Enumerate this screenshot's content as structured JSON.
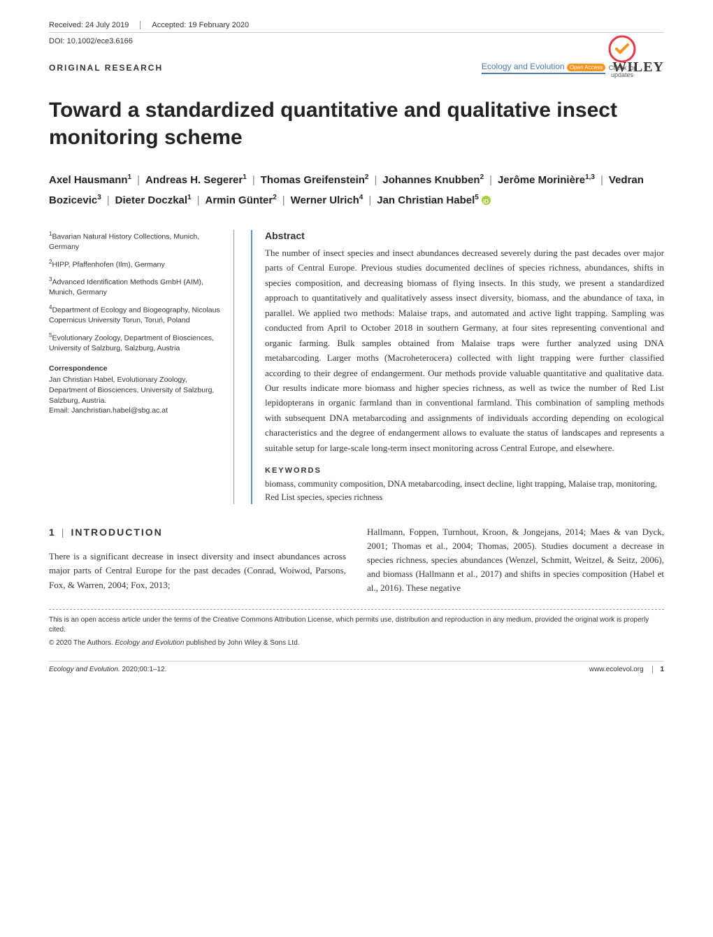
{
  "header": {
    "received": "Received: 24 July 2019",
    "accepted": "Accepted: 19 February 2020",
    "doi": "DOI: 10.1002/ece3.6166",
    "article_type": "ORIGINAL RESEARCH",
    "journal": "Ecology and Evolution",
    "open_access": "Open Access",
    "publisher": "WILEY",
    "check_updates": "Check for updates"
  },
  "title": "Toward a standardized quantitative and qualitative insect monitoring scheme",
  "authors": [
    {
      "name": "Axel Hausmann",
      "aff": "1"
    },
    {
      "name": "Andreas H. Segerer",
      "aff": "1"
    },
    {
      "name": "Thomas Greifenstein",
      "aff": "2"
    },
    {
      "name": "Johannes Knubben",
      "aff": "2"
    },
    {
      "name": "Jerôme Morinière",
      "aff": "1,3"
    },
    {
      "name": "Vedran Bozicevic",
      "aff": "3"
    },
    {
      "name": "Dieter Doczkal",
      "aff": "1"
    },
    {
      "name": "Armin Günter",
      "aff": "2"
    },
    {
      "name": "Werner Ulrich",
      "aff": "4"
    },
    {
      "name": "Jan Christian Habel",
      "aff": "5",
      "orcid": true
    }
  ],
  "affiliations": [
    {
      "n": "1",
      "text": "Bavarian Natural History Collections, Munich, Germany"
    },
    {
      "n": "2",
      "text": "HIPP, Pfaffenhofen (Ilm), Germany"
    },
    {
      "n": "3",
      "text": "Advanced Identification Methods GmbH (AIM), Munich, Germany"
    },
    {
      "n": "4",
      "text": "Department of Ecology and Biogeography, Nicolaus Copernicus University Torun, Toruń, Poland"
    },
    {
      "n": "5",
      "text": "Evolutionary Zoology, Department of Biosciences, University of Salzburg, Salzburg, Austria"
    }
  ],
  "correspondence": {
    "head": "Correspondence",
    "body": "Jan Christian Habel, Evolutionary Zoology, Department of Biosciences, University of Salzburg, Salzburg, Austria.",
    "email": "Email: Janchristian.habel@sbg.ac.at"
  },
  "abstract": {
    "head": "Abstract",
    "body": "The number of insect species and insect abundances decreased severely during the past decades over major parts of Central Europe. Previous studies documented declines of species richness, abundances, shifts in species composition, and decreasing biomass of flying insects. In this study, we present a standardized approach to quantitatively and qualitatively assess insect diversity, biomass, and the abundance of taxa, in parallel. We applied two methods: Malaise traps, and automated and active light trapping. Sampling was conducted from April to October 2018 in southern Germany, at four sites representing conventional and organic farming. Bulk samples obtained from Malaise traps were further analyzed using DNA metabarcoding. Larger moths (Macroheterocera) collected with light trapping were further classified according to their degree of endangerment. Our methods provide valuable quantitative and qualitative data. Our results indicate more biomass and higher species richness, as well as twice the number of Red List lepidopterans in organic farmland than in conventional farmland. This combination of sampling methods with subsequent DNA metabarcoding and assignments of individuals according depending on ecological characteristics and the degree of endangerment allows to evaluate the status of landscapes and represents a suitable setup for large-scale long-term insect monitoring across Central Europe, and elsewhere."
  },
  "keywords": {
    "head": "KEYWORDS",
    "body": "biomass, community composition, DNA metabarcoding, insect decline, light trapping, Malaise trap, monitoring, Red List species, species richness"
  },
  "introduction": {
    "num": "1",
    "head": "INTRODUCTION",
    "col1": "There is a significant decrease in insect diversity and insect abundances across major parts of Central Europe for the past decades (Conrad, Woiwod, Parsons, Fox, & Warren, 2004; Fox, 2013;",
    "col2": "Hallmann, Foppen, Turnhout, Kroon, & Jongejans, 2014; Maes & van Dyck, 2001; Thomas et al., 2004; Thomas, 2005). Studies document a decrease in species richness, species abundances (Wenzel, Schmitt, Weitzel, & Seitz, 2006), and biomass (Hallmann et al., 2017) and shifts in species composition (Habel et al., 2016). These negative"
  },
  "license": "This is an open access article under the terms of the Creative Commons Attribution License, which permits use, distribution and reproduction in any medium, provided the original work is properly cited.",
  "copyright_prefix": "© 2020 The Authors. ",
  "copyright_journal": "Ecology and Evolution",
  "copyright_suffix": " published by John Wiley & Sons Ltd.",
  "footer": {
    "left_journal": "Ecology and Evolution.",
    "left_rest": " 2020;00:1–12.",
    "url": "www.ecolevol.org",
    "page": "1"
  },
  "colors": {
    "journal_brand": "#4a7ba8",
    "abstract_rule": "#5b8fb9",
    "open_access": "#f7941d",
    "orcid": "#a6ce39"
  }
}
